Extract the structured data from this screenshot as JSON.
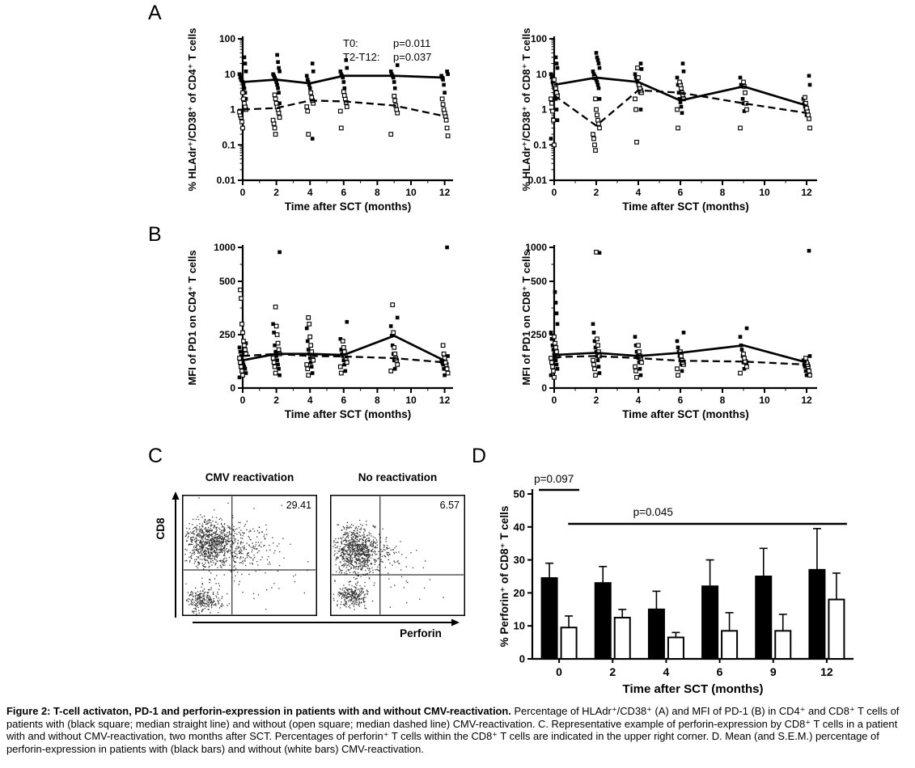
{
  "panels": {
    "a": {
      "label": "A"
    },
    "b": {
      "label": "B"
    },
    "c": {
      "label": "C",
      "plot1_title": "CMV reactivation",
      "plot2_title": "No reactivation",
      "y_arrow_label": "CD8",
      "x_arrow_label": "Perforin"
    },
    "d": {
      "label": "D"
    }
  },
  "colors": {
    "ink": "#000000",
    "paper": "#ffffff"
  },
  "chart_data": [
    {
      "id": "a_cd4",
      "type": "scatter",
      "scale": "log",
      "ylabel": "% HLAdr⁺/CD38⁺ of CD4⁺ T cells",
      "xlabel": "Time after SCT (months)",
      "ylim": [
        0.01,
        100
      ],
      "yticks": [
        100,
        10,
        1,
        0.1,
        0.01
      ],
      "xticks": [
        0,
        2,
        4,
        6,
        8,
        10,
        12
      ],
      "x": [
        0,
        2,
        4,
        6,
        9,
        12
      ],
      "annotation": [
        [
          "T0:",
          "p=0.011"
        ],
        [
          "T2-T12:",
          "p=0.037"
        ]
      ],
      "series": [
        {
          "name": "CMV reactivation (black square; median straight line)",
          "marker": "filled-square",
          "line": "solid",
          "medians": [
            6,
            7,
            5.5,
            9,
            9,
            8
          ],
          "points": [
            [
              0.9,
              2,
              3,
              4,
              5,
              6,
              6.5,
              7,
              8,
              10,
              12,
              20,
              30
            ],
            [
              1.5,
              3,
              4,
              5,
              6,
              7,
              8,
              9,
              10,
              12,
              15,
              22,
              35
            ],
            [
              0.15,
              2,
              3,
              4,
              5,
              6,
              7,
              9,
              12,
              20
            ],
            [
              2,
              4,
              6,
              8,
              9,
              10,
              12,
              15,
              25
            ],
            [
              4,
              6,
              8,
              9,
              10,
              12,
              18
            ],
            [
              3,
              5,
              7,
              8,
              9,
              10,
              12
            ]
          ]
        },
        {
          "name": "No reactivation (open square; median dashed line)",
          "marker": "open-square",
          "line": "dashed",
          "medians": [
            1,
            1.1,
            1.8,
            1.7,
            1.3,
            0.65
          ],
          "points": [
            [
              0.3,
              0.45,
              0.6,
              0.7,
              0.85,
              1,
              1.2,
              1.5,
              2,
              3
            ],
            [
              0.2,
              0.3,
              0.4,
              0.5,
              0.6,
              0.8,
              1,
              1.2,
              1.5,
              2,
              2.6
            ],
            [
              0.2,
              0.9,
              1.2,
              1.5,
              1.8,
              2.2,
              3
            ],
            [
              0.3,
              0.9,
              1.2,
              1.6,
              2,
              2.5,
              3.2
            ],
            [
              0.2,
              0.8,
              1,
              1.3,
              1.8,
              2.4
            ],
            [
              0.18,
              0.3,
              0.5,
              0.65,
              0.8,
              1,
              1.4,
              2
            ]
          ]
        }
      ]
    },
    {
      "id": "a_cd8",
      "type": "scatter",
      "scale": "log",
      "ylabel": "% HLAdr⁺/CD38⁺ of CD8⁺ T cells",
      "xlabel": "Time after SCT (months)",
      "ylim": [
        0.01,
        100
      ],
      "yticks": [
        100,
        10,
        1,
        0.1,
        0.01
      ],
      "xticks": [
        0,
        2,
        4,
        6,
        8,
        10,
        12
      ],
      "x": [
        0,
        2,
        4,
        6,
        9,
        12
      ],
      "series": [
        {
          "name": "CMV reactivation",
          "marker": "filled-square",
          "line": "solid",
          "medians": [
            5,
            8,
            6,
            1.8,
            4.5,
            1.3
          ],
          "points": [
            [
              0.15,
              0.5,
              1,
              2,
              3,
              4,
              5,
              6,
              8,
              10,
              15,
              20,
              30
            ],
            [
              2,
              4,
              5,
              6,
              7,
              8,
              9,
              10,
              12,
              15,
              20,
              25,
              30,
              40
            ],
            [
              1,
              3,
              4,
              5,
              6,
              7,
              8,
              10,
              14,
              20
            ],
            [
              0.8,
              1.2,
              1.6,
              2,
              3,
              5,
              8,
              12,
              20
            ],
            [
              0.9,
              1.5,
              2,
              4.5,
              5,
              8
            ],
            [
              0.7,
              1,
              1.2,
              1.5,
              2,
              5,
              9
            ]
          ]
        },
        {
          "name": "No reactivation",
          "marker": "open-square",
          "line": "dashed",
          "medians": [
            2.5,
            0.35,
            3.5,
            3,
            1.5,
            0.8
          ],
          "points": [
            [
              0.1,
              0.5,
              0.9,
              1.5,
              2,
              2.5,
              3,
              4,
              5,
              7
            ],
            [
              0.07,
              0.1,
              0.15,
              0.2,
              0.3,
              0.4,
              0.5,
              0.7,
              1,
              2,
              8
            ],
            [
              0.12,
              1,
              2,
              3,
              3.5,
              4,
              5,
              8,
              15
            ],
            [
              0.3,
              1,
              2,
              2.6,
              3,
              4,
              5,
              6
            ],
            [
              0.3,
              1,
              1.5,
              3,
              4.5,
              6
            ],
            [
              0.3,
              0.55,
              0.7,
              0.9,
              1.1,
              1.5,
              2.2
            ]
          ]
        }
      ]
    },
    {
      "id": "b_cd4",
      "type": "scatter",
      "scale": "break",
      "brk": 500,
      "ytop": 1000,
      "ylabel": "MFI of PD1 on CD4⁺ T cells",
      "xlabel": "Time after SCT (months)",
      "ylim": [
        0,
        1000
      ],
      "yticks": [
        0,
        250,
        500,
        1000
      ],
      "yminor": [
        125,
        375,
        750
      ],
      "xticks": [
        0,
        2,
        4,
        6,
        8,
        10,
        12
      ],
      "x": [
        0,
        2,
        4,
        6,
        9,
        12
      ],
      "series": [
        {
          "name": "CMV reactivation",
          "marker": "filled-square",
          "line": "solid",
          "medians": [
            130,
            160,
            160,
            155,
            245,
            128
          ],
          "points": [
            [
              50,
              70,
              90,
              100,
              110,
              120,
              130,
              150,
              170,
              190,
              210
            ],
            [
              60,
              90,
              110,
              130,
              150,
              170,
              200,
              260,
              300,
              930
            ],
            [
              70,
              100,
              120,
              140,
              160,
              180,
              220,
              280
            ],
            [
              80,
              110,
              130,
              150,
              160,
              180,
              230,
              310
            ],
            [
              90,
              130,
              160,
              200,
              245,
              290,
              330
            ],
            [
              60,
              90,
              110,
              120,
              130,
              150,
              1000
            ]
          ]
        },
        {
          "name": "No reactivation",
          "marker": "open-square",
          "line": "dashed",
          "medians": [
            150,
            160,
            150,
            148,
            140,
            120
          ],
          "points": [
            [
              60,
              80,
              100,
              120,
              140,
              160,
              180,
              200,
              220,
              260,
              300,
              420,
              460
            ],
            [
              70,
              100,
              120,
              140,
              160,
              180,
              210,
              250,
              290,
              380
            ],
            [
              60,
              90,
              110,
              130,
              150,
              170,
              200,
              240,
              300,
              330
            ],
            [
              70,
              100,
              120,
              140,
              150,
              170,
              190,
              220
            ],
            [
              80,
              110,
              130,
              140,
              160,
              190,
              260,
              390
            ],
            [
              70,
              90,
              110,
              120,
              140,
              160,
              200
            ]
          ]
        }
      ]
    },
    {
      "id": "b_cd8",
      "type": "scatter",
      "scale": "break",
      "brk": 500,
      "ytop": 1000,
      "ylabel": "MFI of PD1 on CD8⁺ T cells",
      "xlabel": "Time after SCT (months)",
      "ylim": [
        0,
        1000
      ],
      "yticks": [
        0,
        250,
        500,
        1000
      ],
      "yminor": [
        125,
        375,
        750
      ],
      "xticks": [
        0,
        2,
        4,
        6,
        8,
        10,
        12
      ],
      "x": [
        0,
        2,
        4,
        6,
        9,
        12
      ],
      "series": [
        {
          "name": "CMV reactivation",
          "marker": "filled-square",
          "line": "solid",
          "medians": [
            155,
            165,
            150,
            165,
            200,
            120
          ],
          "points": [
            [
              60,
              90,
              110,
              130,
              150,
              160,
              180,
              200,
              230,
              260,
              300,
              350,
              400,
              450
            ],
            [
              70,
              100,
              130,
              150,
              170,
              190,
              220,
              260,
              300,
              920
            ],
            [
              60,
              90,
              120,
              140,
              150,
              170,
              200,
              240
            ],
            [
              80,
              110,
              130,
              150,
              170,
              190,
              220,
              260
            ],
            [
              90,
              120,
              150,
              180,
              200,
              240,
              280
            ],
            [
              60,
              80,
              100,
              110,
              130,
              150,
              950
            ]
          ]
        },
        {
          "name": "No reactivation",
          "marker": "open-square",
          "line": "dashed",
          "medians": [
            145,
            150,
            140,
            128,
            124,
            110
          ],
          "points": [
            [
              50,
              80,
              100,
              120,
              140,
              150,
              170,
              190,
              210,
              240
            ],
            [
              60,
              90,
              110,
              130,
              150,
              170,
              200,
              230,
              930
            ],
            [
              50,
              80,
              100,
              120,
              140,
              150,
              170,
              200
            ],
            [
              60,
              90,
              110,
              120,
              130,
              150,
              170
            ],
            [
              70,
              100,
              120,
              125,
              140,
              160
            ],
            [
              60,
              80,
              100,
              110,
              120,
              140
            ]
          ]
        }
      ]
    },
    {
      "id": "c_cmv",
      "type": "flow-scatter",
      "title": "CMV reactivation",
      "quadrant_value": "29.41",
      "gate_x": 0.37,
      "gate_y": 0.62,
      "seed": 7,
      "clusters": [
        {
          "cx": 0.2,
          "cy": 0.4,
          "sx": 0.09,
          "sy": 0.1,
          "n": 700
        },
        {
          "cx": 0.38,
          "cy": 0.42,
          "sx": 0.14,
          "sy": 0.1,
          "n": 300
        },
        {
          "cx": 0.16,
          "cy": 0.87,
          "sx": 0.06,
          "sy": 0.05,
          "n": 250
        },
        {
          "cx": 0.5,
          "cy": 0.6,
          "sx": 0.25,
          "sy": 0.2,
          "n": 60
        }
      ]
    },
    {
      "id": "c_nocmv",
      "type": "flow-scatter",
      "title": "No reactivation",
      "quadrant_value": "6.57",
      "gate_x": 0.37,
      "gate_y": 0.66,
      "seed": 13,
      "clusters": [
        {
          "cx": 0.18,
          "cy": 0.45,
          "sx": 0.08,
          "sy": 0.1,
          "n": 750
        },
        {
          "cx": 0.33,
          "cy": 0.47,
          "sx": 0.1,
          "sy": 0.08,
          "n": 120
        },
        {
          "cx": 0.16,
          "cy": 0.83,
          "sx": 0.06,
          "sy": 0.05,
          "n": 250
        },
        {
          "cx": 0.45,
          "cy": 0.62,
          "sx": 0.2,
          "sy": 0.15,
          "n": 40
        }
      ]
    },
    {
      "id": "d_bars",
      "type": "bar",
      "ylabel": "% Perforin⁺ of CD8⁺ T cells",
      "xlabel": "Time after SCT (months)",
      "ylim": [
        0,
        50
      ],
      "yticks": [
        0,
        10,
        20,
        30,
        40,
        50
      ],
      "categories": [
        "0",
        "2",
        "4",
        "6",
        "9",
        "12"
      ],
      "series": [
        {
          "name": "CMV reactivation (black bars)",
          "fill": "#000000",
          "values": [
            24.5,
            23,
            15,
            22,
            25,
            27
          ],
          "errors": [
            4.5,
            5,
            5.5,
            8,
            8.5,
            12.5
          ]
        },
        {
          "name": "No reactivation (white bars)",
          "fill": "#ffffff",
          "values": [
            9.5,
            12.5,
            6.5,
            8.5,
            8.5,
            18
          ],
          "errors": [
            3.5,
            2.5,
            1.5,
            5.5,
            5,
            8
          ]
        }
      ],
      "annotations": [
        {
          "text": "p=0.097",
          "type": "bracket",
          "cat": 0
        },
        {
          "text": "p=0.045",
          "type": "span",
          "from": 1,
          "to": 5
        }
      ]
    }
  ],
  "caption": {
    "bold": "Figure 2: T-cell activaton, PD-1 and perforin-expression in patients with and without CMV-reactivation.",
    "rest": " Percentage of HLAdr⁺/CD38⁺ (A) and MFI of PD-1 (B) in CD4⁺ and CD8⁺ T cells of patients with (black square; median straight line) and without (open square; median dashed line) CMV-reactivation. C. Representative example of perforin-expression by CD8⁺ T cells in a patient with and without CMV-reactivation, two months after SCT. Percentages of perforin⁺ T cells within the CD8⁺ T cells are indicated in the upper right corner. D. Mean (and S.E.M.) percentage of perforin-expression in patients with (black bars) and without (white bars) CMV-reactivation."
  }
}
